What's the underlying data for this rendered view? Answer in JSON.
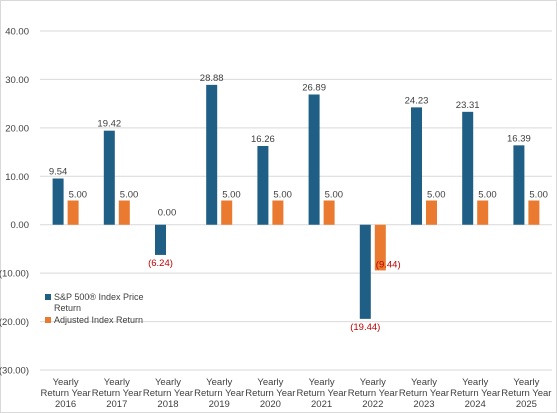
{
  "chart_data": {
    "type": "bar",
    "title": "",
    "xlabel": "",
    "ylabel": "",
    "ylim": [
      -30,
      40
    ],
    "ytick_step": 10,
    "ytick_labels": [
      "40.00",
      "30.00",
      "20.00",
      "10.00",
      "0.00",
      "(10.00)",
      "(20.00)",
      "(30.00)"
    ],
    "grid": true,
    "legend_position": "left, inside plot area near bottom",
    "categories": [
      [
        "Yearly",
        "Return Year",
        "2016"
      ],
      [
        "Yearly",
        "Return Year",
        "2017"
      ],
      [
        "Yearly",
        "Return Year",
        "2018"
      ],
      [
        "Yearly",
        "Return Year",
        "2019"
      ],
      [
        "Yearly",
        "Return Year",
        "2020"
      ],
      [
        "Yearly",
        "Return Year",
        "2021"
      ],
      [
        "Yearly",
        "Return Year",
        "2022"
      ],
      [
        "Yearly",
        "Return Year",
        "2023"
      ],
      [
        "Yearly",
        "Return Year",
        "2024"
      ],
      [
        "Yearly",
        "Return Year",
        "2025"
      ]
    ],
    "series": [
      {
        "name": "S&P 500® Index Price Return",
        "legend_lines": [
          "S&P 500® Index Price",
          "Return"
        ],
        "color": "#1f5f86",
        "values": [
          9.54,
          19.42,
          -6.24,
          28.88,
          16.26,
          26.89,
          -19.44,
          24.23,
          23.31,
          16.39
        ],
        "labels": [
          "9.54",
          "19.42",
          "(6.24)",
          "28.88",
          "16.26",
          "26.89",
          "(19.44)",
          "24.23",
          "23.31",
          "16.39"
        ]
      },
      {
        "name": "Adjusted Index Return",
        "legend_lines": [
          "Adjusted Index Return"
        ],
        "color": "#e97a2f",
        "values": [
          5.0,
          5.0,
          0.0,
          5.0,
          5.0,
          5.0,
          -9.44,
          5.0,
          5.0,
          5.0
        ],
        "labels": [
          "5.00",
          "5.00",
          "0.00",
          "5.00",
          "5.00",
          "5.00",
          "(9.44)",
          "5.00",
          "5.00",
          "5.00"
        ]
      }
    ],
    "colors": {
      "gridline": "#d9d9d9",
      "negative_label": "#c00000",
      "text": "#404040"
    }
  }
}
